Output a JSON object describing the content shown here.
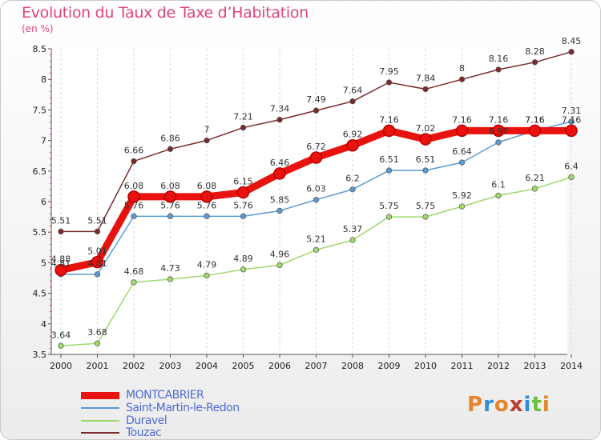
{
  "title": "Evolution du Taux de Taxe d’Habitation",
  "unit_label": "(en %)",
  "logo_text": "Proxiti",
  "logo_colors": [
    "#e8842a",
    "#2f8fd6",
    "#e8842a",
    "#c0392b",
    "#2f8fd6",
    "#6cbf3a",
    "#e8842a"
  ],
  "chart_data": {
    "type": "line",
    "title": "Evolution du Taux de Taxe d’Habitation",
    "ylabel": "(en %)",
    "xlabel": "",
    "x": [
      2000,
      2001,
      2002,
      2003,
      2004,
      2005,
      2006,
      2007,
      2008,
      2009,
      2010,
      2011,
      2012,
      2013,
      2014
    ],
    "ylim": [
      3.5,
      8.5
    ],
    "yticks": [
      3.5,
      4,
      4.5,
      5,
      5.5,
      6,
      6.5,
      7,
      7.5,
      8,
      8.5
    ],
    "grid": "vertical dashed",
    "legend_position": "bottom-left",
    "series": [
      {
        "name": "MONTCABRIER",
        "color": "#e8120f",
        "values": [
          4.88,
          5.01,
          6.08,
          6.08,
          6.08,
          6.15,
          6.46,
          6.72,
          6.92,
          7.16,
          7.02,
          7.16,
          7.16,
          7.16,
          7.16
        ]
      },
      {
        "name": "Saint-Martin-le-Redon",
        "color": "#5b9bd5",
        "values": [
          4.81,
          4.81,
          5.76,
          5.76,
          5.76,
          5.76,
          5.85,
          6.03,
          6.2,
          6.51,
          6.51,
          6.64,
          6.97,
          7.16,
          7.31
        ]
      },
      {
        "name": "Duravel",
        "color": "#9fd86b",
        "values": [
          3.64,
          3.68,
          4.68,
          4.73,
          4.79,
          4.89,
          4.96,
          5.21,
          5.37,
          5.75,
          5.75,
          5.92,
          6.1,
          6.21,
          6.4
        ]
      },
      {
        "name": "Touzac",
        "color": "#7a2a2a",
        "values": [
          5.51,
          5.51,
          6.66,
          6.86,
          7.0,
          7.21,
          7.34,
          7.49,
          7.64,
          7.95,
          7.84,
          8.0,
          8.16,
          8.28,
          8.45
        ]
      }
    ],
    "labels": [
      [
        "4.88",
        "5.01",
        "6.08",
        "6.08",
        "6.08",
        "6.15",
        "6.46",
        "6.72",
        "6.92",
        "7.16",
        "7.02",
        "7.16",
        "7.16",
        "7.16",
        "7.16"
      ],
      [
        "4.81",
        "4.81",
        "5.76",
        "5.76",
        "5.76",
        "5.76",
        "5.85",
        "6.03",
        "6.2",
        "6.51",
        "6.51",
        "6.64",
        "6.97",
        "7.16",
        "7.31"
      ],
      [
        "3.64",
        "3.68",
        "4.68",
        "4.73",
        "4.79",
        "4.89",
        "4.96",
        "5.21",
        "5.37",
        "5.75",
        "5.75",
        "5.92",
        "6.1",
        "6.21",
        "6.4"
      ],
      [
        "5.51",
        "5.51",
        "6.66",
        "6.86",
        "7",
        "7.21",
        "7.34",
        "7.49",
        "7.64",
        "7.95",
        "7.84",
        "8",
        "8.16",
        "8.28",
        "8.45"
      ]
    ]
  }
}
